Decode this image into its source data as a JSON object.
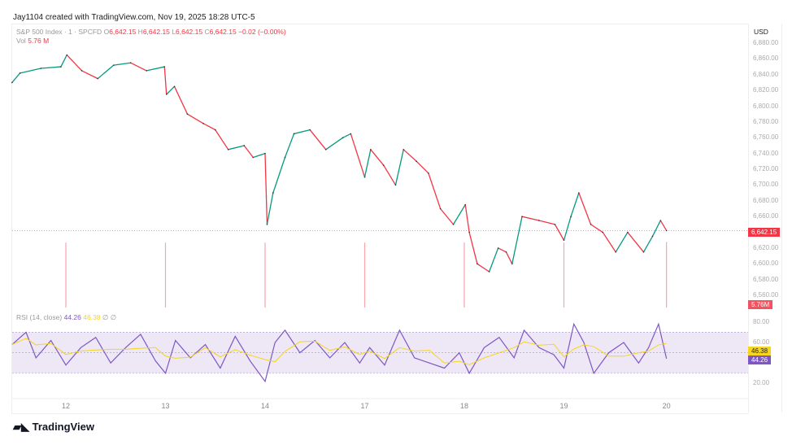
{
  "header": {
    "credit": "Jay1104 created with TradingView.com, Nov 19, 2025 18:28 UTC-5"
  },
  "legend": {
    "symbol": "S&P 500 Index · 1 · SPCFD",
    "o_label": "O",
    "o": "6,642.15",
    "h_label": "H",
    "h": "6,642.15",
    "l_label": "L",
    "l": "6,642.15",
    "c_label": "C",
    "c": "6,642.15",
    "change": "−0.02 (−0.00%)",
    "vol_label": "Vol",
    "vol": "5.76 M"
  },
  "rsi_legend": {
    "label": "RSI (14, close)",
    "rsi": "44.26",
    "ma": "46.38",
    "ext1": "∅",
    "ext2": "∅"
  },
  "price_axis": {
    "currency": "USD",
    "ticks": [
      "6,880.00",
      "6,860.00",
      "6,840.00",
      "6,820.00",
      "6,800.00",
      "6,780.00",
      "6,760.00",
      "6,740.00",
      "6,720.00",
      "6,700.00",
      "6,680.00",
      "6,660.00",
      "6,620.00",
      "6,600.00",
      "6,580.00",
      "6,560.00"
    ],
    "last_price": "6,642.15",
    "last_vol": "5.76M"
  },
  "rsi_axis": {
    "ticks": [
      "80.00",
      "60.00",
      "20.00"
    ],
    "rsi_badge": "44.26",
    "ma_badge": "46.38"
  },
  "x_axis": {
    "labels": [
      "12",
      "13",
      "14",
      "17",
      "18",
      "19",
      "20"
    ]
  },
  "brand": {
    "logo": "TradingView"
  },
  "colors": {
    "up": "#089981",
    "down": "#f23645",
    "rsi": "#7e57c2",
    "rsi_ma": "#f7d51e",
    "band": "#ede7f6"
  },
  "chart_data": {
    "type": "line",
    "price_series": [
      [
        -0.54,
        6830
      ],
      [
        -0.46,
        6842
      ],
      [
        -0.25,
        6848
      ],
      [
        -0.05,
        6850
      ],
      [
        0.01,
        6865
      ],
      [
        0.16,
        6845
      ],
      [
        0.32,
        6835
      ],
      [
        0.48,
        6852
      ],
      [
        0.65,
        6855
      ],
      [
        0.81,
        6845
      ],
      [
        0.99,
        6850
      ],
      [
        1.01,
        6815
      ],
      [
        1.09,
        6825
      ],
      [
        1.22,
        6790
      ],
      [
        1.38,
        6778
      ],
      [
        1.5,
        6770
      ],
      [
        1.63,
        6745
      ],
      [
        1.79,
        6750
      ],
      [
        1.88,
        6735
      ],
      [
        2.0,
        6740
      ],
      [
        2.02,
        6650
      ],
      [
        2.08,
        6690
      ],
      [
        2.2,
        6735
      ],
      [
        2.29,
        6765
      ],
      [
        2.45,
        6770
      ],
      [
        2.61,
        6745
      ],
      [
        2.78,
        6760
      ],
      [
        2.86,
        6765
      ],
      [
        3.0,
        6710
      ],
      [
        3.06,
        6745
      ],
      [
        3.19,
        6725
      ],
      [
        3.31,
        6700
      ],
      [
        3.39,
        6745
      ],
      [
        3.52,
        6730
      ],
      [
        3.64,
        6715
      ],
      [
        3.76,
        6670
      ],
      [
        3.89,
        6650
      ],
      [
        4.01,
        6675
      ],
      [
        4.05,
        6640
      ],
      [
        4.13,
        6600
      ],
      [
        4.25,
        6590
      ],
      [
        4.34,
        6620
      ],
      [
        4.42,
        6615
      ],
      [
        4.48,
        6600
      ],
      [
        4.58,
        6660
      ],
      [
        4.75,
        6655
      ],
      [
        4.91,
        6650
      ],
      [
        5.0,
        6630
      ],
      [
        5.07,
        6660
      ],
      [
        5.15,
        6690
      ],
      [
        5.27,
        6650
      ],
      [
        5.39,
        6640
      ],
      [
        5.52,
        6615
      ],
      [
        5.64,
        6640
      ],
      [
        5.8,
        6615
      ],
      [
        5.89,
        6635
      ],
      [
        5.97,
        6655
      ],
      [
        6.03,
        6642.15
      ]
    ],
    "rsi_series": [
      [
        -0.54,
        58
      ],
      [
        -0.4,
        70
      ],
      [
        -0.3,
        45
      ],
      [
        -0.15,
        62
      ],
      [
        0,
        38
      ],
      [
        0.15,
        55
      ],
      [
        0.3,
        65
      ],
      [
        0.45,
        40
      ],
      [
        0.6,
        55
      ],
      [
        0.75,
        68
      ],
      [
        0.9,
        42
      ],
      [
        1.0,
        30
      ],
      [
        1.1,
        62
      ],
      [
        1.25,
        45
      ],
      [
        1.4,
        58
      ],
      [
        1.55,
        35
      ],
      [
        1.7,
        66
      ],
      [
        1.85,
        42
      ],
      [
        2.0,
        22
      ],
      [
        2.1,
        60
      ],
      [
        2.2,
        72
      ],
      [
        2.35,
        50
      ],
      [
        2.5,
        62
      ],
      [
        2.65,
        45
      ],
      [
        2.8,
        60
      ],
      [
        2.95,
        40
      ],
      [
        3.05,
        55
      ],
      [
        3.2,
        38
      ],
      [
        3.35,
        72
      ],
      [
        3.5,
        45
      ],
      [
        3.65,
        40
      ],
      [
        3.8,
        35
      ],
      [
        3.95,
        50
      ],
      [
        4.05,
        30
      ],
      [
        4.2,
        55
      ],
      [
        4.35,
        65
      ],
      [
        4.5,
        45
      ],
      [
        4.6,
        72
      ],
      [
        4.75,
        55
      ],
      [
        4.9,
        48
      ],
      [
        5.0,
        35
      ],
      [
        5.1,
        78
      ],
      [
        5.2,
        60
      ],
      [
        5.3,
        30
      ],
      [
        5.45,
        50
      ],
      [
        5.6,
        60
      ],
      [
        5.75,
        40
      ],
      [
        5.85,
        55
      ],
      [
        5.95,
        78
      ],
      [
        6.03,
        44.26
      ]
    ],
    "volume_spikes": [
      [
        0,
        5.7
      ],
      [
        1,
        5.7
      ],
      [
        2,
        5.7
      ],
      [
        3,
        5.7
      ],
      [
        4,
        5.7
      ],
      [
        5,
        5.7
      ],
      [
        6.03,
        5.76
      ]
    ],
    "price_range": [
      6550,
      6890
    ],
    "rsi_range": [
      10,
      90
    ],
    "rsi_bands": [
      70,
      30
    ]
  }
}
